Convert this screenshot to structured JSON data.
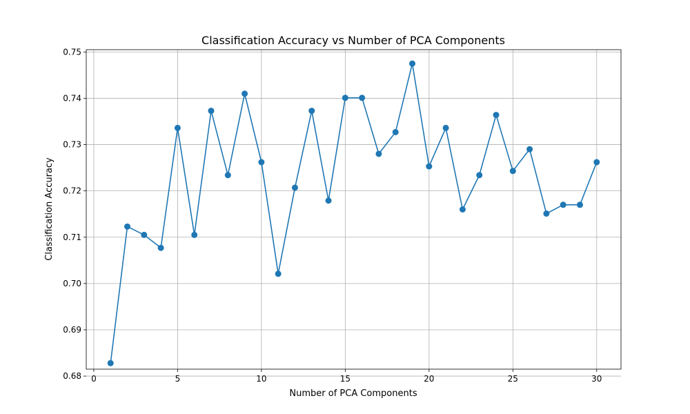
{
  "chart_data": {
    "type": "line",
    "title": "Classification Accuracy vs Number of PCA Components",
    "xlabel": "Number of PCA Components",
    "ylabel": "Classification Accuracy",
    "xlim": [
      -0.45,
      31.45
    ],
    "ylim": [
      0.6815,
      0.7505
    ],
    "xticks": [
      0,
      5,
      10,
      15,
      20,
      25,
      30
    ],
    "yticks": [
      0.68,
      0.69,
      0.7,
      0.71,
      0.72,
      0.73,
      0.74,
      0.75
    ],
    "grid": true,
    "color": "#1f77b4",
    "series": [
      {
        "x": [
          1,
          2,
          3,
          4,
          5,
          6,
          7,
          8,
          9,
          10,
          11,
          12,
          13,
          14,
          15,
          16,
          17,
          18,
          19,
          20,
          21,
          22,
          23,
          24,
          25,
          26,
          27,
          28,
          29,
          30
        ],
        "values": [
          0.6828,
          0.7123,
          0.7105,
          0.7077,
          0.7336,
          0.7105,
          0.7373,
          0.7234,
          0.741,
          0.7262,
          0.7021,
          0.7207,
          0.7373,
          0.7179,
          0.7401,
          0.7401,
          0.728,
          0.7327,
          0.7475,
          0.7253,
          0.7336,
          0.716,
          0.7234,
          0.7364,
          0.7243,
          0.729,
          0.7151,
          0.717,
          0.717,
          0.7262
        ]
      }
    ]
  }
}
